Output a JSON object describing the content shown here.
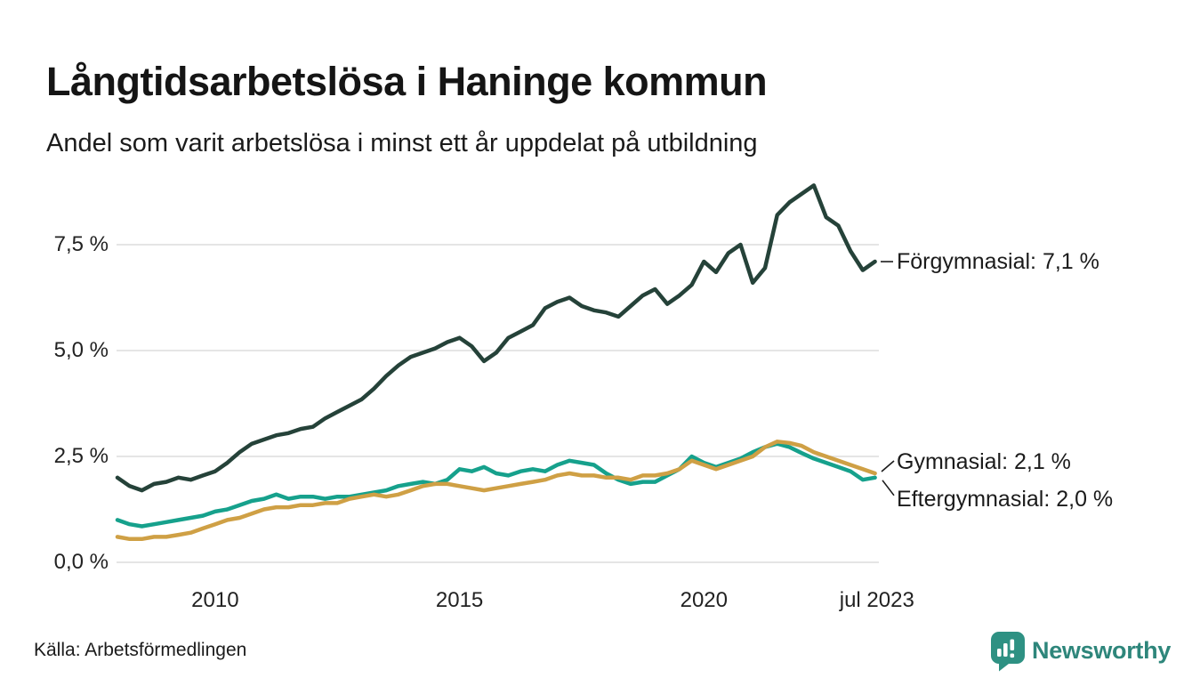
{
  "header": {
    "title": "Långtidsarbetslösa i Haninge kommun",
    "subtitle": "Andel som varit arbetslösa i minst ett år uppdelat på utbildning"
  },
  "footer": {
    "source": "Källa: Arbetsförmedlingen",
    "brand": "Newsworthy",
    "brand_icon": "newsworthy-logo",
    "brand_color": "#2E867B"
  },
  "colors": {
    "forgymnasial": "#254239",
    "gymnasial": "#CFA045",
    "eftergymnasial": "#16A18C",
    "gridline": "#E5E5E5",
    "leader": "#1b1b1b"
  },
  "chart_data": {
    "type": "line",
    "unit": "%",
    "x": [
      2008.0,
      2008.25,
      2008.5,
      2008.75,
      2009.0,
      2009.25,
      2009.5,
      2009.75,
      2010.0,
      2010.25,
      2010.5,
      2010.75,
      2011.0,
      2011.25,
      2011.5,
      2011.75,
      2012.0,
      2012.25,
      2012.5,
      2012.75,
      2013.0,
      2013.25,
      2013.5,
      2013.75,
      2014.0,
      2014.25,
      2014.5,
      2014.75,
      2015.0,
      2015.25,
      2015.5,
      2015.75,
      2016.0,
      2016.25,
      2016.5,
      2016.75,
      2017.0,
      2017.25,
      2017.5,
      2017.75,
      2018.0,
      2018.25,
      2018.5,
      2018.75,
      2019.0,
      2019.25,
      2019.5,
      2019.75,
      2020.0,
      2020.25,
      2020.5,
      2020.75,
      2021.0,
      2021.25,
      2021.5,
      2021.75,
      2022.0,
      2022.25,
      2022.5,
      2022.75,
      2023.0,
      2023.25,
      2023.5
    ],
    "series": [
      {
        "name": "Förgymnasial",
        "color": "#254239",
        "end_value": 7.1,
        "end_label": "Förgymnasial: 7,1 %",
        "values": [
          2.0,
          1.8,
          1.7,
          1.85,
          1.9,
          2.0,
          1.95,
          2.05,
          2.15,
          2.35,
          2.6,
          2.8,
          2.9,
          3.0,
          3.05,
          3.15,
          3.2,
          3.4,
          3.55,
          3.7,
          3.85,
          4.1,
          4.4,
          4.65,
          4.85,
          4.95,
          5.05,
          5.2,
          5.3,
          5.1,
          4.75,
          4.95,
          5.3,
          5.45,
          5.6,
          6.0,
          6.15,
          6.25,
          6.05,
          5.95,
          5.9,
          5.8,
          6.05,
          6.3,
          6.45,
          6.1,
          6.3,
          6.55,
          7.1,
          6.85,
          7.3,
          7.5,
          6.6,
          6.95,
          8.2,
          8.5,
          8.7,
          8.9,
          8.15,
          7.95,
          7.35,
          6.9,
          7.1
        ]
      },
      {
        "name": "Gymnasial",
        "color": "#CFA045",
        "end_value": 2.1,
        "end_label": "Gymnasial: 2,1 %",
        "values": [
          0.6,
          0.55,
          0.55,
          0.6,
          0.6,
          0.65,
          0.7,
          0.8,
          0.9,
          1.0,
          1.05,
          1.15,
          1.25,
          1.3,
          1.3,
          1.35,
          1.35,
          1.4,
          1.4,
          1.5,
          1.55,
          1.6,
          1.55,
          1.6,
          1.7,
          1.8,
          1.85,
          1.85,
          1.8,
          1.75,
          1.7,
          1.75,
          1.8,
          1.85,
          1.9,
          1.95,
          2.05,
          2.1,
          2.05,
          2.05,
          2.0,
          2.0,
          1.95,
          2.05,
          2.05,
          2.1,
          2.2,
          2.4,
          2.3,
          2.2,
          2.3,
          2.4,
          2.5,
          2.72,
          2.85,
          2.82,
          2.75,
          2.6,
          2.5,
          2.4,
          2.3,
          2.2,
          2.1
        ]
      },
      {
        "name": "Eftergymnasial",
        "color": "#16A18C",
        "end_value": 2.0,
        "end_label": "Eftergymnasial: 2,0 %",
        "values": [
          1.0,
          0.9,
          0.85,
          0.9,
          0.95,
          1.0,
          1.05,
          1.1,
          1.2,
          1.25,
          1.35,
          1.45,
          1.5,
          1.6,
          1.5,
          1.55,
          1.55,
          1.5,
          1.55,
          1.55,
          1.6,
          1.65,
          1.7,
          1.8,
          1.85,
          1.9,
          1.85,
          1.95,
          2.2,
          2.15,
          2.25,
          2.1,
          2.05,
          2.15,
          2.2,
          2.15,
          2.3,
          2.4,
          2.35,
          2.3,
          2.1,
          1.95,
          1.85,
          1.9,
          1.9,
          2.05,
          2.2,
          2.5,
          2.35,
          2.25,
          2.35,
          2.45,
          2.6,
          2.72,
          2.8,
          2.72,
          2.58,
          2.45,
          2.35,
          2.25,
          2.15,
          1.95,
          2.0
        ]
      }
    ],
    "x_ticks": [
      {
        "value": 2010,
        "label": "2010"
      },
      {
        "value": 2015,
        "label": "2015"
      },
      {
        "value": 2020,
        "label": "2020"
      },
      {
        "value": 2023.54,
        "label": "jul 2023"
      }
    ],
    "y_ticks": [
      {
        "value": 0,
        "label": "0,0 %"
      },
      {
        "value": 2.5,
        "label": "2,5 %"
      },
      {
        "value": 5,
        "label": "5,0 %"
      },
      {
        "value": 7.5,
        "label": "7,5 %"
      }
    ],
    "xlim": [
      2008.0,
      2023.58
    ],
    "ylim": [
      0,
      9.2
    ],
    "grid": "horizontal",
    "legend_position": "end-of-line-labels",
    "title": "Långtidsarbetslösa i Haninge kommun",
    "subtitle": "Andel som varit arbetslösa i minst ett år uppdelat på utbildning",
    "xlabel": "",
    "ylabel": ""
  }
}
